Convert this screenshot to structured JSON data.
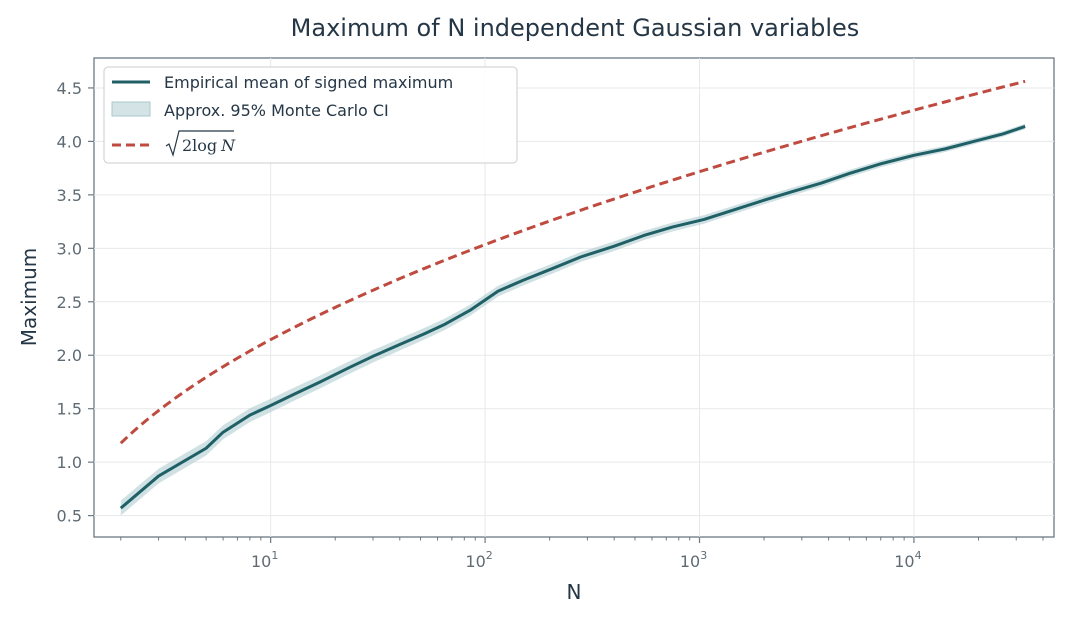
{
  "chart_data": {
    "type": "line",
    "title": "Maximum of N independent Gaussian variables",
    "xlabel": "N",
    "ylabel": "Maximum",
    "xscale": "log",
    "xlim": [
      1.5,
      45000
    ],
    "ylim": [
      0.3,
      4.78
    ],
    "grid": true,
    "legend_position": "top-left",
    "x_ticks": [
      {
        "value": 10,
        "base": "10",
        "exp": "1"
      },
      {
        "value": 100,
        "base": "10",
        "exp": "2"
      },
      {
        "value": 1000,
        "base": "10",
        "exp": "3"
      },
      {
        "value": 10000,
        "base": "10",
        "exp": "4"
      }
    ],
    "y_ticks": [
      "0.5",
      "1.0",
      "1.5",
      "2.0",
      "2.5",
      "3.0",
      "3.5",
      "4.0",
      "4.5"
    ],
    "series": [
      {
        "name": "Empirical mean of signed maximum",
        "kind": "line",
        "color": "#1f5f66",
        "x": [
          2,
          3,
          5,
          6,
          8,
          10,
          13,
          17,
          23,
          30,
          40,
          52,
          65,
          85,
          115,
          150,
          200,
          280,
          400,
          550,
          750,
          1050,
          1500,
          2000,
          2700,
          3700,
          5000,
          7000,
          10000,
          14000,
          19000,
          26000,
          33000
        ],
        "y": [
          0.57,
          0.87,
          1.13,
          1.28,
          1.44,
          1.53,
          1.64,
          1.75,
          1.88,
          1.99,
          2.1,
          2.2,
          2.29,
          2.42,
          2.6,
          2.7,
          2.8,
          2.92,
          3.02,
          3.12,
          3.2,
          3.27,
          3.37,
          3.45,
          3.53,
          3.61,
          3.7,
          3.79,
          3.87,
          3.93,
          4.0,
          4.07,
          4.14
        ]
      },
      {
        "name": "Approx. 95% Monte Carlo CI",
        "kind": "band",
        "color": "#a9c8cc",
        "half_width_start": 0.07,
        "half_width_end": 0.025
      },
      {
        "name": "√(2 log N)",
        "label_radicand": "2log",
        "label_var": "N",
        "kind": "line",
        "style": "dashed",
        "color": "#bf4b40",
        "formula": "sqrt(2*ln(N))",
        "x_range": [
          2,
          33000
        ]
      }
    ]
  }
}
